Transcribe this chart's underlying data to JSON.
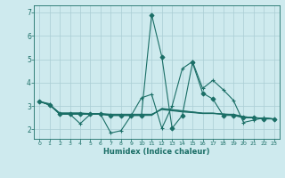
{
  "xlabel": "Humidex (Indice chaleur)",
  "background_color": "#ceeaee",
  "grid_color": "#aacdd4",
  "line_color": "#1a6e66",
  "xlim": [
    -0.5,
    23.5
  ],
  "ylim": [
    1.6,
    7.3
  ],
  "yticks": [
    2,
    3,
    4,
    5,
    6,
    7
  ],
  "xticks": [
    0,
    1,
    2,
    3,
    4,
    5,
    6,
    7,
    8,
    9,
    10,
    11,
    12,
    13,
    14,
    15,
    16,
    17,
    18,
    19,
    20,
    21,
    22,
    23
  ],
  "series": [
    {
      "x": [
        0,
        1,
        2,
        3,
        4,
        5,
        6,
        7,
        8,
        9,
        10,
        11,
        12,
        13,
        14,
        15,
        16,
        17,
        18,
        19,
        20,
        21,
        22,
        23
      ],
      "y": [
        3.2,
        3.1,
        2.65,
        2.65,
        2.25,
        2.65,
        2.65,
        1.85,
        1.95,
        2.6,
        3.35,
        3.5,
        2.05,
        3.0,
        4.6,
        4.9,
        3.75,
        4.1,
        3.7,
        3.25,
        2.3,
        2.4,
        2.5,
        2.45
      ],
      "marker": "+",
      "ms": 3,
      "lw": 0.8
    },
    {
      "x": [
        0,
        1,
        2,
        3,
        4,
        5,
        6,
        7,
        8,
        9,
        10,
        11,
        12,
        13,
        14,
        15,
        16,
        17,
        18,
        19,
        20,
        21,
        22,
        23
      ],
      "y": [
        3.2,
        3.05,
        2.7,
        2.7,
        2.7,
        2.65,
        2.65,
        2.6,
        2.6,
        2.6,
        2.6,
        2.6,
        2.9,
        2.85,
        2.8,
        2.75,
        2.7,
        2.7,
        2.65,
        2.65,
        2.55,
        2.5,
        2.48,
        2.45
      ],
      "marker": null,
      "ms": 0,
      "lw": 0.8
    },
    {
      "x": [
        0,
        1,
        2,
        3,
        4,
        5,
        6,
        7,
        8,
        9,
        10,
        11,
        12,
        13,
        14,
        15,
        16,
        17,
        18,
        19,
        20,
        21,
        22,
        23
      ],
      "y": [
        3.2,
        3.05,
        2.7,
        2.7,
        2.7,
        2.68,
        2.68,
        2.65,
        2.65,
        2.65,
        2.65,
        2.65,
        2.85,
        2.8,
        2.75,
        2.72,
        2.68,
        2.68,
        2.65,
        2.62,
        2.52,
        2.5,
        2.47,
        2.45
      ],
      "marker": null,
      "ms": 0,
      "lw": 0.8
    },
    {
      "x": [
        0,
        1,
        2,
        3,
        4,
        5,
        6,
        7,
        8,
        9,
        10,
        11,
        12,
        13,
        14,
        15,
        16,
        17,
        18,
        19,
        20,
        21,
        22,
        23
      ],
      "y": [
        3.2,
        3.05,
        2.68,
        2.68,
        2.68,
        2.66,
        2.66,
        2.63,
        2.63,
        2.63,
        2.63,
        2.63,
        2.88,
        2.83,
        2.78,
        2.74,
        2.69,
        2.69,
        2.66,
        2.63,
        2.54,
        2.51,
        2.47,
        2.45
      ],
      "marker": null,
      "ms": 0,
      "lw": 0.8
    },
    {
      "x": [
        0,
        1,
        2,
        3,
        4,
        5,
        6,
        7,
        8,
        9,
        10,
        11,
        12,
        13,
        14,
        15,
        16,
        17,
        18,
        19,
        20,
        21,
        22,
        23
      ],
      "y": [
        3.2,
        3.05,
        2.65,
        2.65,
        2.65,
        2.65,
        2.65,
        2.6,
        2.6,
        2.6,
        2.6,
        6.9,
        5.1,
        2.05,
        2.6,
        4.85,
        3.55,
        3.3,
        2.6,
        2.6,
        2.5,
        2.5,
        2.45,
        2.45
      ],
      "marker": "D",
      "ms": 2.5,
      "lw": 0.8
    }
  ]
}
